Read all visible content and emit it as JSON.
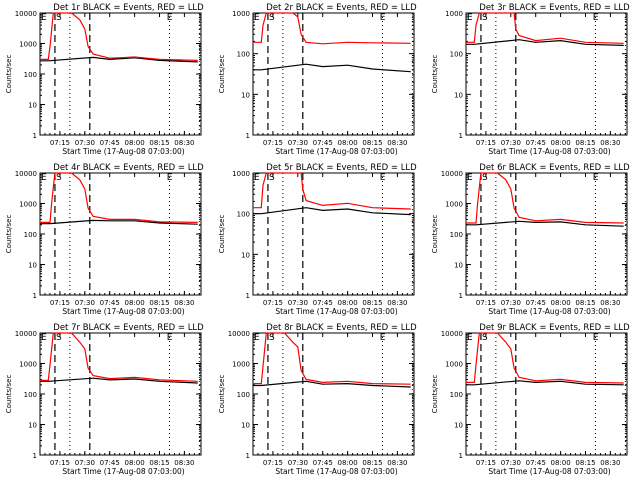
{
  "chart_data": [
    {
      "type": "line",
      "title": "Det 1r BLACK = Events, RED = LLD",
      "xlabel": "Start Time (17-Aug-08 07:03:00)",
      "ylabel": "Counts/sec",
      "ylim": [
        1,
        10000
      ],
      "yscale": "log",
      "yticks": [
        "1",
        "10",
        "100",
        "1000",
        "10000"
      ],
      "xticks": [
        "07:15",
        "07:30",
        "07:45",
        "08:00",
        "08:15",
        "08:30"
      ],
      "xlim": [
        "07:03",
        "08:40"
      ],
      "markers": {
        "E_start": "07:03",
        "S": "07:12",
        "E_end": "08:20"
      },
      "dashed": [
        "07:12",
        "07:33"
      ],
      "dotted": [
        "07:21",
        "08:21",
        "08:39"
      ],
      "series": [
        {
          "name": "Events",
          "color": "#000000",
          "x": [
            "07:03",
            "07:08",
            "07:35",
            "07:45",
            "08:00",
            "08:15",
            "08:38"
          ],
          "values": [
            270,
            270,
            350,
            300,
            340,
            280,
            250
          ]
        },
        {
          "name": "LLD",
          "color": "#ff0000",
          "x": [
            "07:03",
            "07:08",
            "07:09",
            "07:11",
            "07:22",
            "07:27",
            "07:30",
            "07:32",
            "07:35",
            "07:45",
            "08:00",
            "08:15",
            "08:38"
          ],
          "values": [
            300,
            300,
            800,
            10000,
            10000,
            6000,
            3000,
            800,
            450,
            330,
            360,
            300,
            280
          ]
        }
      ]
    },
    {
      "type": "line",
      "title": "Det 2r BLACK = Events, RED = LLD",
      "xlabel": "Start Time (17-Aug-08 07:03:00)",
      "ylabel": "Counts/sec",
      "ylim": [
        1,
        1000
      ],
      "yscale": "log",
      "yticks": [
        "1",
        "10",
        "100",
        "1000"
      ],
      "xticks": [
        "07:15",
        "07:30",
        "07:45",
        "08:00",
        "08:15",
        "08:30"
      ],
      "xlim": [
        "07:03",
        "08:40"
      ],
      "markers": {
        "E_start": "07:03",
        "S": "07:12",
        "E_end": "08:20"
      },
      "dashed": [
        "07:12",
        "07:33"
      ],
      "dotted": [
        "07:21",
        "08:21",
        "08:39"
      ],
      "series": [
        {
          "name": "Events",
          "color": "#000000",
          "x": [
            "07:03",
            "07:08",
            "07:35",
            "07:45",
            "08:00",
            "08:15",
            "08:38"
          ],
          "values": [
            40,
            40,
            55,
            48,
            52,
            42,
            36
          ]
        },
        {
          "name": "LLD",
          "color": "#ff0000",
          "x": [
            "07:03",
            "07:08",
            "07:09",
            "07:11",
            "07:27",
            "07:30",
            "07:32",
            "07:35",
            "07:45",
            "08:00",
            "08:15",
            "08:38"
          ],
          "values": [
            190,
            190,
            500,
            1000,
            1000,
            800,
            300,
            190,
            175,
            190,
            185,
            180
          ]
        }
      ]
    },
    {
      "type": "line",
      "title": "Det 3r BLACK = Events, RED = LLD",
      "xlabel": "Start Time (17-Aug-08 07:03:00)",
      "ylabel": "Counts/sec",
      "ylim": [
        1,
        1000
      ],
      "yscale": "log",
      "yticks": [
        "1",
        "10",
        "100",
        "1000"
      ],
      "xticks": [
        "07:15",
        "07:30",
        "07:45",
        "08:00",
        "08:15",
        "08:30"
      ],
      "xlim": [
        "07:03",
        "08:40"
      ],
      "markers": {
        "E_start": "07:03",
        "S": "07:12",
        "E_end": "08:20"
      },
      "dashed": [
        "07:12",
        "07:33"
      ],
      "dotted": [
        "07:21",
        "08:21",
        "08:39"
      ],
      "series": [
        {
          "name": "Events",
          "color": "#000000",
          "x": [
            "07:03",
            "07:08",
            "07:35",
            "07:45",
            "08:00",
            "08:15",
            "08:38"
          ],
          "values": [
            170,
            170,
            220,
            190,
            210,
            170,
            160
          ]
        },
        {
          "name": "LLD",
          "color": "#ff0000",
          "x": [
            "07:03",
            "07:08",
            "07:09",
            "07:11",
            "07:32",
            "07:33",
            "07:35",
            "07:45",
            "08:00",
            "08:15",
            "08:38"
          ],
          "values": [
            190,
            190,
            500,
            1000,
            1000,
            400,
            280,
            210,
            240,
            190,
            180
          ]
        }
      ]
    },
    {
      "type": "line",
      "title": "Det 4r BLACK = Events, RED = LLD",
      "xlabel": "Start Time (17-Aug-08 07:03:00)",
      "ylabel": "Counts/sec",
      "ylim": [
        1,
        10000
      ],
      "yscale": "log",
      "yticks": [
        "1",
        "10",
        "100",
        "1000",
        "10000"
      ],
      "xticks": [
        "07:15",
        "07:30",
        "07:45",
        "08:00",
        "08:15",
        "08:30"
      ],
      "xlim": [
        "07:03",
        "08:40"
      ],
      "markers": {
        "E_start": "07:03",
        "S": "07:12",
        "E_end": "08:20"
      },
      "dashed": [
        "07:12",
        "07:33"
      ],
      "dotted": [
        "07:21",
        "08:21",
        "08:39"
      ],
      "series": [
        {
          "name": "Events",
          "color": "#000000",
          "x": [
            "07:03",
            "07:09",
            "07:35",
            "07:45",
            "08:00",
            "08:15",
            "08:38"
          ],
          "values": [
            220,
            220,
            280,
            270,
            270,
            230,
            210
          ]
        },
        {
          "name": "LLD",
          "color": "#ff0000",
          "x": [
            "07:03",
            "07:09",
            "07:10",
            "07:12",
            "07:22",
            "07:27",
            "07:30",
            "07:32",
            "07:35",
            "07:45",
            "08:00",
            "08:15",
            "08:38"
          ],
          "values": [
            240,
            240,
            1000,
            10000,
            10000,
            6000,
            3000,
            700,
            380,
            300,
            300,
            250,
            240
          ]
        }
      ]
    },
    {
      "type": "line",
      "title": "Det 5r BLACK = Events, RED = LLD",
      "xlabel": "Start Time (17-Aug-08 07:03:00)",
      "ylabel": "Counts/sec",
      "ylim": [
        1,
        1000
      ],
      "yscale": "log",
      "yticks": [
        "1",
        "10",
        "100",
        "1000"
      ],
      "xticks": [
        "07:15",
        "07:30",
        "07:45",
        "08:00",
        "08:15",
        "08:30"
      ],
      "xlim": [
        "07:03",
        "08:40"
      ],
      "markers": {
        "E_start": "07:03",
        "S": "07:12",
        "E_end": "08:20"
      },
      "dashed": [
        "07:12",
        "07:33"
      ],
      "dotted": [
        "07:21",
        "08:21",
        "08:39"
      ],
      "series": [
        {
          "name": "Events",
          "color": "#000000",
          "x": [
            "07:03",
            "07:08",
            "07:35",
            "07:45",
            "08:00",
            "08:15",
            "08:38"
          ],
          "values": [
            100,
            100,
            140,
            120,
            130,
            105,
            95
          ]
        },
        {
          "name": "LLD",
          "color": "#ff0000",
          "x": [
            "07:03",
            "07:08",
            "07:09",
            "07:11",
            "07:32",
            "07:33",
            "07:35",
            "07:45",
            "08:00",
            "08:15",
            "08:38"
          ],
          "values": [
            140,
            140,
            500,
            1000,
            1000,
            400,
            210,
            160,
            180,
            140,
            130
          ]
        }
      ]
    },
    {
      "type": "line",
      "title": "Det 6r BLACK = Events, RED = LLD",
      "xlabel": "Start Time (17-Aug-08 07:03:00)",
      "ylabel": "Counts/sec",
      "ylim": [
        1,
        10000
      ],
      "yscale": "log",
      "yticks": [
        "1",
        "10",
        "100",
        "1000",
        "10000"
      ],
      "xticks": [
        "07:15",
        "07:30",
        "07:45",
        "08:00",
        "08:15",
        "08:30"
      ],
      "xlim": [
        "07:03",
        "08:40"
      ],
      "markers": {
        "E_start": "07:03",
        "S": "07:12",
        "E_end": "08:20"
      },
      "dashed": [
        "07:12",
        "07:33"
      ],
      "dotted": [
        "07:21",
        "08:21",
        "08:39"
      ],
      "series": [
        {
          "name": "Events",
          "color": "#000000",
          "x": [
            "07:03",
            "07:09",
            "07:35",
            "07:45",
            "08:00",
            "08:15",
            "08:38"
          ],
          "values": [
            200,
            200,
            260,
            240,
            250,
            200,
            180
          ]
        },
        {
          "name": "LLD",
          "color": "#ff0000",
          "x": [
            "07:03",
            "07:09",
            "07:10",
            "07:12",
            "07:22",
            "07:27",
            "07:30",
            "07:32",
            "07:35",
            "07:45",
            "08:00",
            "08:15",
            "08:38"
          ],
          "values": [
            230,
            230,
            1000,
            10000,
            10000,
            6000,
            3000,
            700,
            350,
            270,
            300,
            240,
            230
          ]
        }
      ]
    },
    {
      "type": "line",
      "title": "Det 7r BLACK = Events, RED = LLD",
      "xlabel": "Start Time (17-Aug-08 07:03:00)",
      "ylabel": "Counts/sec",
      "ylim": [
        1,
        10000
      ],
      "yscale": "log",
      "yticks": [
        "1",
        "10",
        "100",
        "1000",
        "10000"
      ],
      "xticks": [
        "07:15",
        "07:30",
        "07:45",
        "08:00",
        "08:15",
        "08:30"
      ],
      "xlim": [
        "07:03",
        "08:40"
      ],
      "markers": {
        "E_start": "07:03",
        "S": "07:12",
        "E_end": "08:20"
      },
      "dashed": [
        "07:12",
        "07:33"
      ],
      "dotted": [
        "07:21",
        "08:21",
        "08:39"
      ],
      "series": [
        {
          "name": "Events",
          "color": "#000000",
          "x": [
            "07:03",
            "07:08",
            "07:35",
            "07:45",
            "08:00",
            "08:15",
            "08:38"
          ],
          "values": [
            260,
            260,
            330,
            290,
            310,
            260,
            230
          ]
        },
        {
          "name": "LLD",
          "color": "#ff0000",
          "x": [
            "07:03",
            "07:08",
            "07:09",
            "07:11",
            "07:22",
            "07:27",
            "07:30",
            "07:32",
            "07:35",
            "07:45",
            "08:00",
            "08:15",
            "08:38"
          ],
          "values": [
            280,
            280,
            900,
            10000,
            10000,
            5000,
            3000,
            700,
            400,
            320,
            350,
            290,
            260
          ]
        }
      ]
    },
    {
      "type": "line",
      "title": "Det 8r BLACK = Events, RED = LLD",
      "xlabel": "Start Time (17-Aug-08 07:03:00)",
      "ylabel": "Counts/sec",
      "ylim": [
        1,
        10000
      ],
      "yscale": "log",
      "yticks": [
        "1",
        "10",
        "100",
        "1000",
        "10000"
      ],
      "xticks": [
        "07:15",
        "07:30",
        "07:45",
        "08:00",
        "08:15",
        "08:30"
      ],
      "xlim": [
        "07:03",
        "08:40"
      ],
      "markers": {
        "E_start": "07:03",
        "S": "07:12",
        "E_end": "08:20"
      },
      "dashed": [
        "07:12",
        "07:33"
      ],
      "dotted": [
        "07:21",
        "08:21",
        "08:39"
      ],
      "series": [
        {
          "name": "Events",
          "color": "#000000",
          "x": [
            "07:03",
            "07:08",
            "07:35",
            "07:45",
            "08:00",
            "08:15",
            "08:38"
          ],
          "values": [
            190,
            190,
            260,
            210,
            220,
            190,
            170
          ]
        },
        {
          "name": "LLD",
          "color": "#ff0000",
          "x": [
            "07:03",
            "07:08",
            "07:09",
            "07:11",
            "07:22",
            "07:27",
            "07:30",
            "07:32",
            "07:35",
            "07:45",
            "08:00",
            "08:15",
            "08:38"
          ],
          "values": [
            220,
            220,
            800,
            10000,
            10000,
            5000,
            3500,
            600,
            300,
            240,
            260,
            220,
            210
          ]
        }
      ]
    },
    {
      "type": "line",
      "title": "Det 9r BLACK = Events, RED = LLD",
      "xlabel": "Start Time (17-Aug-08 07:03:00)",
      "ylabel": "Counts/sec",
      "ylim": [
        1,
        10000
      ],
      "yscale": "log",
      "yticks": [
        "1",
        "10",
        "100",
        "1000",
        "10000"
      ],
      "xticks": [
        "07:15",
        "07:30",
        "07:45",
        "08:00",
        "08:15",
        "08:30"
      ],
      "xlim": [
        "07:03",
        "08:40"
      ],
      "markers": {
        "E_start": "07:03",
        "S": "07:12",
        "E_end": "08:20"
      },
      "dashed": [
        "07:12",
        "07:33"
      ],
      "dotted": [
        "07:21",
        "08:21",
        "08:39"
      ],
      "series": [
        {
          "name": "Events",
          "color": "#000000",
          "x": [
            "07:03",
            "07:08",
            "07:35",
            "07:45",
            "08:00",
            "08:15",
            "08:38"
          ],
          "values": [
            200,
            200,
            270,
            240,
            260,
            210,
            200
          ]
        },
        {
          "name": "LLD",
          "color": "#ff0000",
          "x": [
            "07:03",
            "07:08",
            "07:09",
            "07:11",
            "07:22",
            "07:27",
            "07:30",
            "07:32",
            "07:35",
            "07:45",
            "08:00",
            "08:15",
            "08:38"
          ],
          "values": [
            240,
            240,
            900,
            10000,
            10000,
            5000,
            3000,
            700,
            350,
            270,
            300,
            240,
            230
          ]
        }
      ]
    }
  ]
}
